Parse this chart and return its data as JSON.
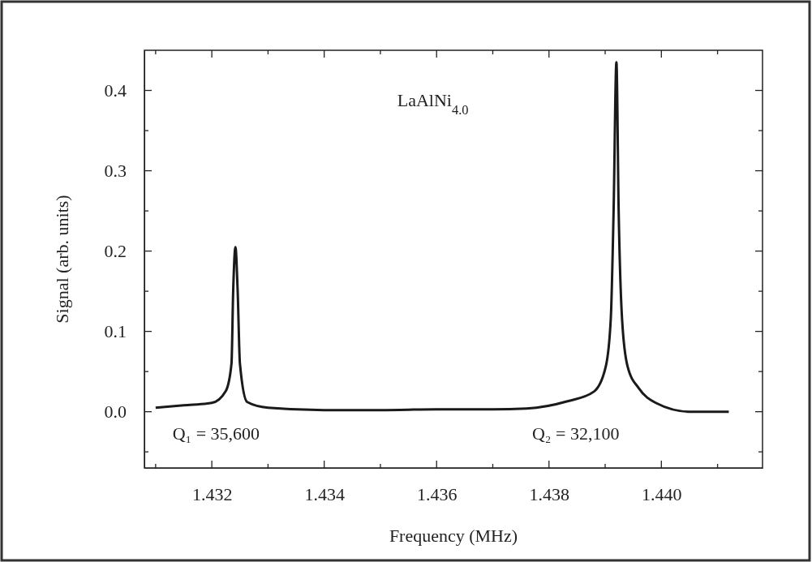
{
  "chart_data": {
    "type": "line",
    "xlabel": "Frequency (MHz)",
    "ylabel": "Signal (arb. units)",
    "annotations": [
      "LaAlNi$_{4.0}$",
      "Q₁ = 35,600",
      "Q₂ = 32,100"
    ],
    "x": [
      1.431,
      1.4315,
      1.432,
      1.43225,
      1.43235,
      1.43238,
      1.43242,
      1.43246,
      1.4325,
      1.43263,
      1.433,
      1.434,
      1.435,
      1.436,
      1.437,
      1.4376,
      1.43833,
      1.4388,
      1.43901,
      1.4391,
      1.43915,
      1.4392,
      1.43924,
      1.4393,
      1.4394,
      1.4396,
      1.4399,
      1.4405,
      1.4412
    ],
    "series": [
      {
        "color": "#1a1a1a",
        "values": [
          0.005,
          0.008,
          0.011,
          0.026,
          0.06,
          0.15,
          0.205,
          0.15,
          0.06,
          0.012,
          0.005,
          0.002,
          0.002,
          0.003,
          0.003,
          0.004,
          0.013,
          0.025,
          0.056,
          0.116,
          0.25,
          0.435,
          0.25,
          0.116,
          0.056,
          0.029,
          0.011,
          0.0,
          0.0
        ]
      }
    ],
    "xlim": [
      1.4308,
      1.4418
    ],
    "ylim": [
      -0.07,
      0.45
    ],
    "xticks": [
      {
        "value": 1.431,
        "label": null
      },
      1.432,
      {
        "value": 1.433,
        "label": null
      },
      1.434,
      {
        "value": 1.435,
        "label": null
      },
      1.436,
      {
        "value": 1.437,
        "label": null
      },
      1.438,
      {
        "value": 1.439,
        "label": null
      },
      {
        "value": 1.44,
        "label": "1.440"
      },
      {
        "value": 1.441,
        "label": null
      }
    ],
    "yticks": [
      {
        "value": -0.05,
        "label": null
      },
      {
        "value": 0,
        "label": "0.0"
      },
      {
        "value": 0.05,
        "label": null
      },
      0.1,
      {
        "value": 0.15,
        "label": null
      },
      0.2,
      {
        "value": 0.25,
        "label": null
      },
      0.3,
      {
        "value": 0.35,
        "label": null
      },
      0.4
    ],
    "line_style": "solid"
  }
}
